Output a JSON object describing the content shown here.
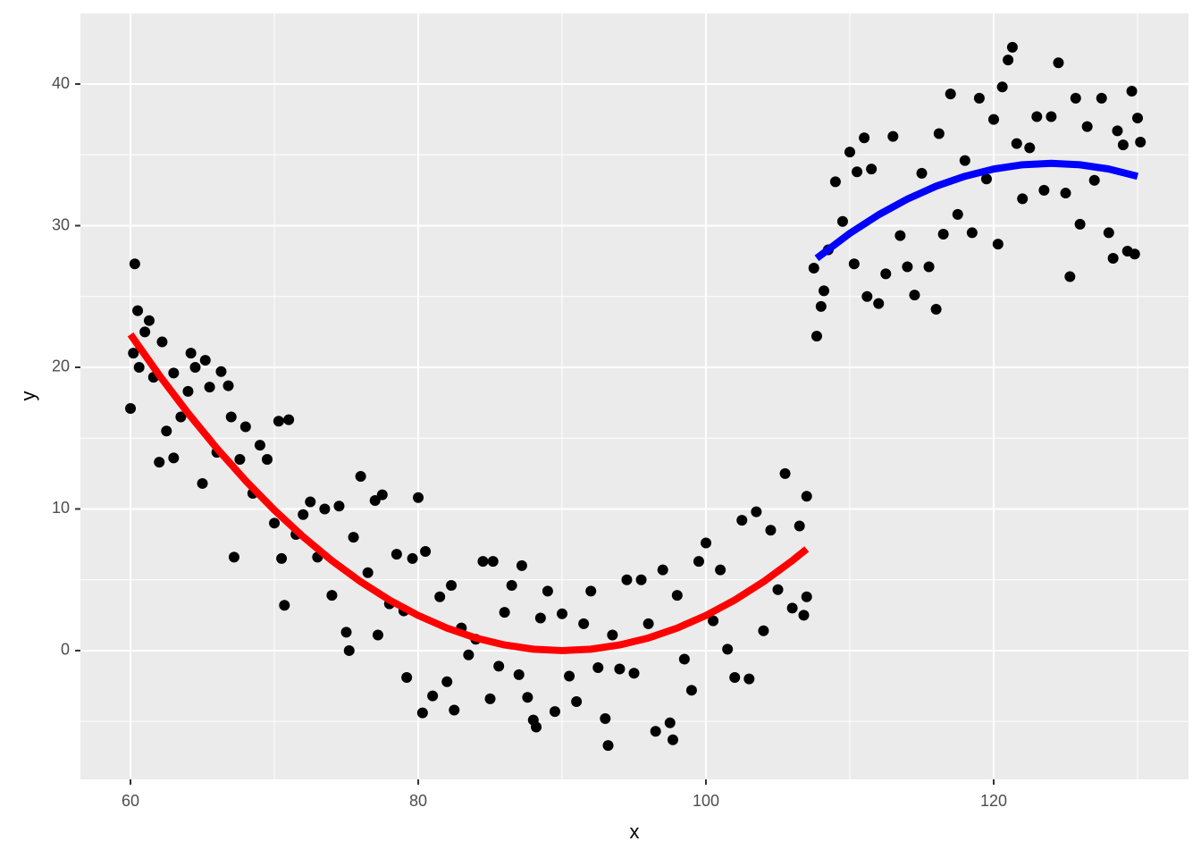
{
  "chart_data": {
    "type": "scatter",
    "xlabel": "x",
    "ylabel": "y",
    "xlim": [
      56.52,
      133.54
    ],
    "ylim": [
      -9.09,
      45.05
    ],
    "xticks": [
      60,
      80,
      100,
      120
    ],
    "yticks": [
      0,
      10,
      20,
      30,
      40
    ],
    "grid": true,
    "points": {
      "color": "#000000",
      "x": [
        60,
        60.2,
        60.3,
        60.5,
        60.6,
        61,
        61.3,
        61.6,
        62,
        62.2,
        62.5,
        63,
        63,
        63.5,
        64,
        64.2,
        64.5,
        65,
        65.2,
        65.5,
        66,
        66.3,
        66.8,
        67,
        67.2,
        67.6,
        68,
        68.5,
        69,
        69.5,
        70,
        70.3,
        70.5,
        70.7,
        71,
        71.5,
        72,
        72.5,
        73,
        73.5,
        74,
        74.5,
        75,
        75.2,
        75.5,
        76,
        76.5,
        77,
        77.2,
        77.5,
        78,
        78.5,
        79,
        79.2,
        79.6,
        80,
        80.3,
        80.5,
        81,
        81.5,
        82,
        82.3,
        82.5,
        83,
        83.5,
        84,
        84.5,
        85,
        85.2,
        85.6,
        86,
        86.5,
        87,
        87.2,
        87.6,
        88,
        88.2,
        88.5,
        89,
        89.5,
        90,
        90.5,
        91,
        91.5,
        92,
        92.5,
        93,
        93.2,
        93.5,
        94,
        94.5,
        95,
        95.5,
        96,
        96.5,
        97,
        97.5,
        97.7,
        98,
        98.5,
        99,
        99.5,
        100,
        100.5,
        101,
        101.5,
        102,
        102.5,
        103,
        103.5,
        104,
        104.5,
        105,
        105.5,
        106,
        106.5,
        107,
        107,
        106.8,
        107.5,
        107.7,
        108,
        108.2,
        108.5,
        109,
        109.5,
        110,
        110.3,
        110.5,
        111,
        111.2,
        111.5,
        112,
        112.5,
        113,
        113.5,
        114,
        114.5,
        115,
        115.5,
        116,
        116.2,
        116.5,
        117,
        117.5,
        118,
        118.5,
        119,
        119.5,
        120,
        120.3,
        120.6,
        121,
        121.3,
        121.6,
        122,
        122.5,
        123,
        123.5,
        124,
        124.5,
        125,
        125.3,
        125.7,
        126,
        126.5,
        127,
        127.5,
        128,
        128.3,
        128.6,
        129,
        129.3,
        129.6,
        129.8,
        130,
        130.2
      ],
      "y": [
        17.1,
        21,
        27.3,
        24,
        20,
        22.5,
        23.3,
        19.3,
        13.3,
        21.8,
        15.5,
        19.6,
        13.6,
        16.5,
        18.3,
        21,
        20,
        11.8,
        20.5,
        18.6,
        14,
        19.7,
        18.7,
        16.5,
        6.6,
        13.5,
        15.8,
        11.1,
        14.5,
        13.5,
        9,
        16.2,
        6.5,
        3.2,
        16.3,
        8.2,
        9.6,
        10.5,
        6.6,
        10,
        3.9,
        10.2,
        1.3,
        0,
        8,
        12.3,
        5.5,
        10.6,
        1.1,
        11,
        3.3,
        6.8,
        2.8,
        -1.9,
        6.5,
        10.8,
        -4.4,
        7,
        -3.2,
        3.8,
        -2.2,
        4.6,
        -4.2,
        1.6,
        -0.3,
        0.8,
        6.3,
        -3.4,
        6.3,
        -1.1,
        2.7,
        4.6,
        -1.7,
        6,
        -3.3,
        -4.9,
        -5.4,
        2.3,
        4.2,
        -4.3,
        2.6,
        -1.8,
        -3.6,
        1.9,
        4.2,
        -1.2,
        -4.8,
        -6.7,
        1.1,
        -1.3,
        5,
        -1.6,
        5,
        1.9,
        -5.7,
        5.7,
        -5.1,
        -6.3,
        3.9,
        -0.6,
        -2.8,
        6.3,
        7.6,
        2.1,
        5.7,
        0.1,
        -1.9,
        9.2,
        -2,
        9.8,
        1.4,
        8.5,
        4.3,
        12.5,
        3,
        8.8,
        10.9,
        3.8,
        2.5,
        27,
        22.2,
        24.3,
        25.4,
        28.3,
        33.1,
        30.3,
        35.2,
        27.3,
        33.8,
        36.2,
        25,
        34,
        24.5,
        26.6,
        36.3,
        29.3,
        27.1,
        25.1,
        33.7,
        27.1,
        24.1,
        36.5,
        29.4,
        39.3,
        30.8,
        34.6,
        29.5,
        39,
        33.3,
        37.5,
        28.7,
        39.8,
        41.7,
        42.6,
        35.8,
        31.9,
        35.5,
        37.7,
        32.5,
        37.7,
        41.5,
        32.3,
        26.4,
        39,
        30.1,
        37,
        33.2,
        39,
        29.5,
        27.7,
        36.7,
        35.7,
        28.2,
        39.5,
        28,
        37.6,
        35.9
      ]
    },
    "lines": [
      {
        "color": "#ff0000",
        "x": [
          60,
          62,
          64,
          66,
          68,
          70,
          72,
          74,
          76,
          78,
          80,
          82,
          84,
          86,
          88,
          90,
          92,
          94,
          96,
          98,
          100,
          102,
          104,
          106,
          107
        ],
        "y": [
          22.32,
          19.44,
          16.76,
          14.28,
          12.0,
          9.92,
          8.04,
          6.35,
          4.86,
          3.57,
          2.48,
          1.59,
          0.89,
          0.4,
          0.1,
          0,
          0.1,
          0.4,
          0.89,
          1.59,
          2.48,
          3.57,
          4.86,
          6.35,
          7.17
        ]
      },
      {
        "color": "#0000ff",
        "x": [
          107.7,
          110,
          112,
          114,
          116,
          118,
          120,
          122,
          124,
          126,
          128,
          130
        ],
        "y": [
          27.7,
          29.46,
          30.77,
          31.88,
          32.79,
          33.49,
          34.0,
          34.3,
          34.4,
          34.3,
          34.0,
          33.49
        ]
      }
    ]
  }
}
